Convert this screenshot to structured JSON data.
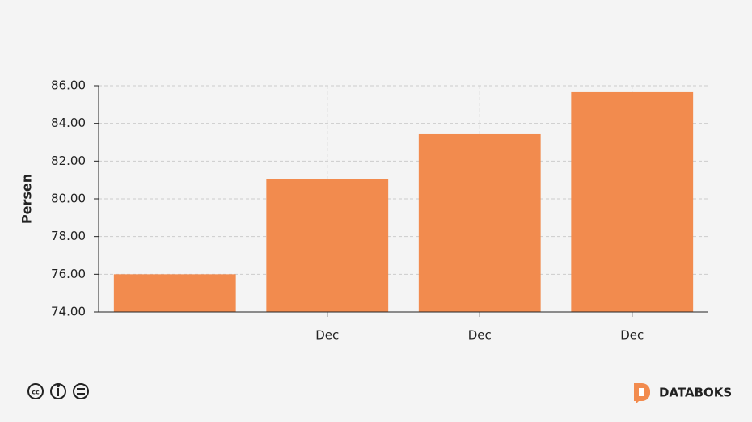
{
  "chart_data": {
    "type": "bar",
    "y_label": "Persen",
    "categories": [
      null,
      "Dec",
      "Dec",
      "Dec"
    ],
    "values": [
      76.0,
      81.05,
      83.43,
      85.66
    ],
    "color": "#f28b4e",
    "ylim": [
      74,
      86
    ],
    "yticks": [
      {
        "value": 74,
        "label": "74.00"
      },
      {
        "value": 76,
        "label": "76.00"
      },
      {
        "value": 78,
        "label": "78.00"
      },
      {
        "value": 80,
        "label": "80.00"
      },
      {
        "value": 82,
        "label": "82.00"
      },
      {
        "value": 84,
        "label": "84.00"
      },
      {
        "value": 86,
        "label": "86.00"
      }
    ],
    "grid": true
  },
  "footer": {
    "brand": "DATABOKS"
  }
}
